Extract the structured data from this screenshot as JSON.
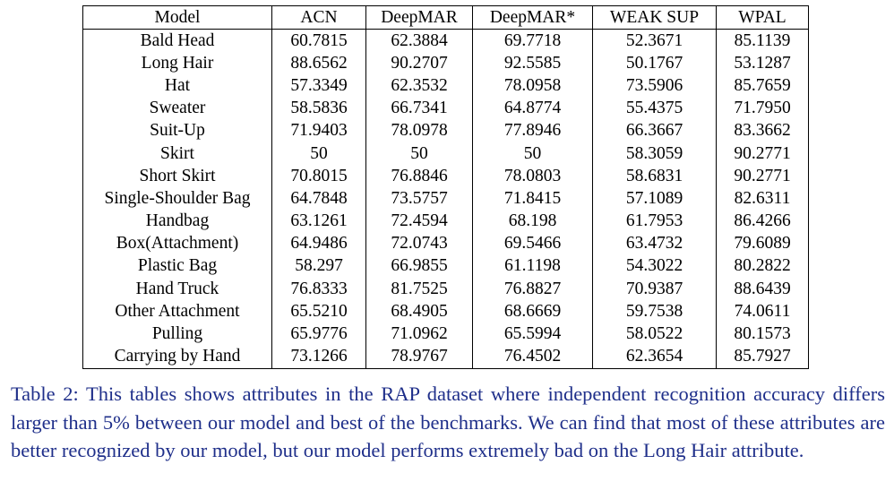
{
  "table": {
    "headers": [
      "Model",
      "ACN",
      "DeepMAR",
      "DeepMAR*",
      "WEAK SUP",
      "WPAL"
    ],
    "rows": [
      {
        "attr": "Bald Head",
        "acn": "60.7815",
        "deepmar": "62.3884",
        "deepmar_star": "69.7718",
        "weak_sup": "52.3671",
        "wpal": "85.1139",
        "best": "wpal"
      },
      {
        "attr": "Long Hair",
        "acn": "88.6562",
        "deepmar": "90.2707",
        "deepmar_star": "92.5585",
        "weak_sup": "50.1767",
        "wpal": "53.1287",
        "best": "deepmar_star"
      },
      {
        "attr": "Hat",
        "acn": "57.3349",
        "deepmar": "62.3532",
        "deepmar_star": "78.0958",
        "weak_sup": "73.5906",
        "wpal": "85.7659",
        "best": "wpal"
      },
      {
        "attr": "Sweater",
        "acn": "58.5836",
        "deepmar": "66.7341",
        "deepmar_star": "64.8774",
        "weak_sup": "55.4375",
        "wpal": "71.7950",
        "best": "wpal"
      },
      {
        "attr": "Suit-Up",
        "acn": "71.9403",
        "deepmar": "78.0978",
        "deepmar_star": "77.8946",
        "weak_sup": "66.3667",
        "wpal": "83.3662",
        "best": "wpal"
      },
      {
        "attr": "Skirt",
        "acn": "50",
        "deepmar": "50",
        "deepmar_star": "50",
        "weak_sup": "58.3059",
        "wpal": "90.2771",
        "best": "wpal"
      },
      {
        "attr": "Short Skirt",
        "acn": "70.8015",
        "deepmar": "76.8846",
        "deepmar_star": "78.0803",
        "weak_sup": "58.6831",
        "wpal": "90.2771",
        "best": "wpal"
      },
      {
        "attr": "Single-Shoulder Bag",
        "acn": "64.7848",
        "deepmar": "73.5757",
        "deepmar_star": "71.8415",
        "weak_sup": "57.1089",
        "wpal": "82.6311",
        "best": "wpal"
      },
      {
        "attr": "Handbag",
        "acn": "63.1261",
        "deepmar": "72.4594",
        "deepmar_star": "68.198",
        "weak_sup": "61.7953",
        "wpal": "86.4266",
        "best": "wpal"
      },
      {
        "attr": "Box(Attachment)",
        "acn": "64.9486",
        "deepmar": "72.0743",
        "deepmar_star": "69.5466",
        "weak_sup": "63.4732",
        "wpal": "79.6089",
        "best": "wpal"
      },
      {
        "attr": "Plastic Bag",
        "acn": "58.297",
        "deepmar": "66.9855",
        "deepmar_star": "61.1198",
        "weak_sup": "54.3022",
        "wpal": "80.2822",
        "best": "wpal"
      },
      {
        "attr": "Hand Truck",
        "acn": "76.8333",
        "deepmar": "81.7525",
        "deepmar_star": "76.8827",
        "weak_sup": "70.9387",
        "wpal": "88.6439",
        "best": "wpal"
      },
      {
        "attr": "Other Attachment",
        "acn": "65.5210",
        "deepmar": "68.4905",
        "deepmar_star": "68.6669",
        "weak_sup": "59.7538",
        "wpal": "74.0611",
        "best": "wpal"
      },
      {
        "attr": "Pulling",
        "acn": "65.9776",
        "deepmar": "71.0962",
        "deepmar_star": "65.5994",
        "weak_sup": "58.0522",
        "wpal": "80.1573",
        "best": "wpal"
      },
      {
        "attr": "Carrying by Hand",
        "acn": "73.1266",
        "deepmar": "78.9767",
        "deepmar_star": "76.4502",
        "weak_sup": "62.3654",
        "wpal": "85.7927",
        "best": "wpal"
      }
    ]
  },
  "caption": "Table 2: This tables shows attributes in the RAP dataset where independent recognition accuracy differs larger than 5% between our model and best of the benchmarks. We can find that most of these attributes are better recognized by our model, but our model performs extremely bad on the Long Hair attribute.",
  "colors": {
    "caption_text": "#1f2f8a",
    "table_text": "#000000"
  }
}
